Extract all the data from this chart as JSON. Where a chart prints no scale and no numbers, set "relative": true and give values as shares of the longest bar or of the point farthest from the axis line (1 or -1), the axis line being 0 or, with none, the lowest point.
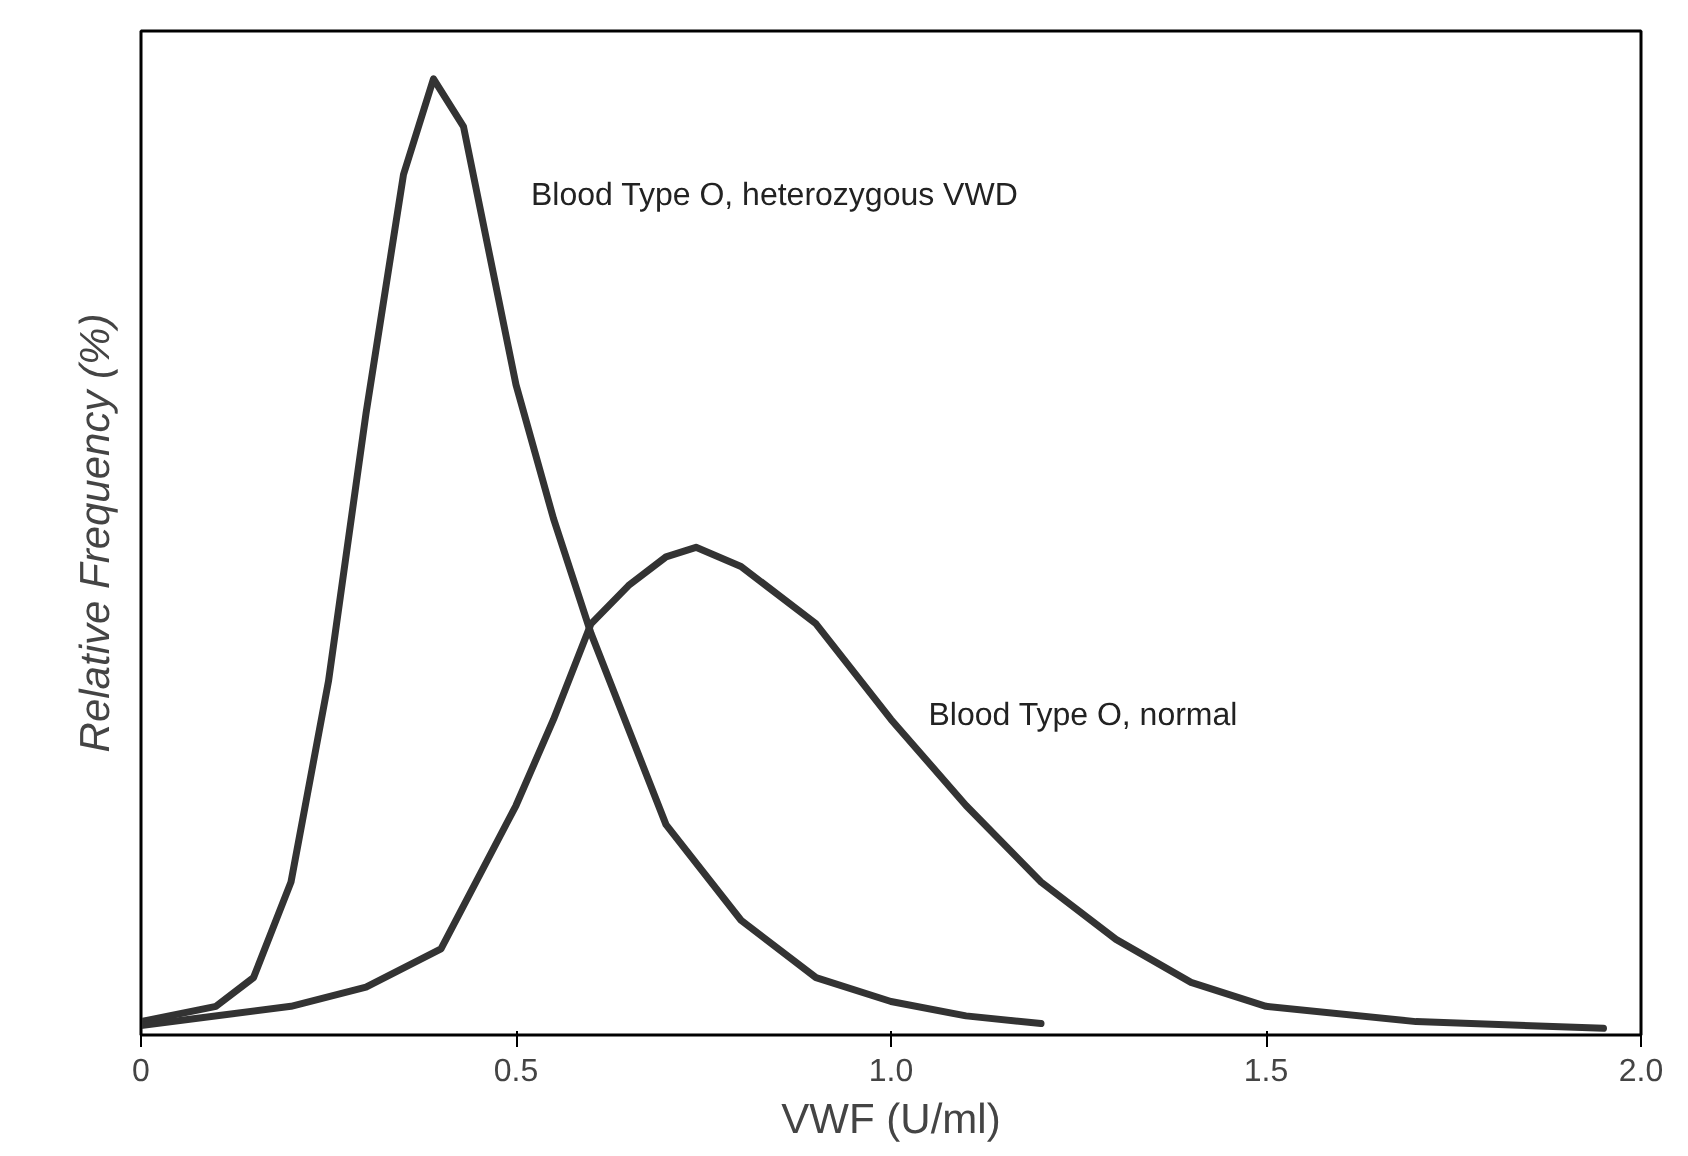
{
  "chart_data": {
    "type": "line",
    "relative": true,
    "xlabel": "VWF (U/ml)",
    "ylabel": "Relative Frequency (%)",
    "xlim": [
      0,
      2
    ],
    "xticks": [
      0,
      0.5,
      {
        "value": 1,
        "label": "1.0"
      },
      1.5,
      {
        "value": 2,
        "label": "2.0"
      }
    ],
    "tick_labels": "x",
    "grid": false,
    "legend": false,
    "line_style": "solid",
    "series": [
      {
        "name": "Blood Type O, heterozygous VWD",
        "color": "#333333",
        "x": [
          0,
          0.1,
          0.15,
          0.2,
          0.25,
          0.3,
          0.35,
          0.39,
          0.43,
          0.5,
          0.55,
          0.6,
          0.7,
          0.8,
          0.9,
          1.0,
          1.1,
          1.2
        ],
        "values": [
          0.014,
          0.03,
          0.06,
          0.16,
          0.37,
          0.65,
          0.9,
          1.0,
          0.95,
          0.68,
          0.54,
          0.42,
          0.22,
          0.12,
          0.06,
          0.035,
          0.02,
          0.012
        ]
      },
      {
        "name": "Blood Type O, normal",
        "color": "#333333",
        "x": [
          0,
          0.2,
          0.3,
          0.4,
          0.5,
          0.55,
          0.6,
          0.65,
          0.7,
          0.74,
          0.8,
          0.9,
          1.0,
          1.1,
          1.2,
          1.3,
          1.4,
          1.5,
          1.7,
          1.95
        ],
        "values": [
          0.01,
          0.03,
          0.05,
          0.09,
          0.24,
          0.33,
          0.43,
          0.47,
          0.5,
          0.51,
          0.49,
          0.43,
          0.33,
          0.24,
          0.16,
          0.1,
          0.055,
          0.03,
          0.014,
          0.007
        ]
      }
    ]
  }
}
